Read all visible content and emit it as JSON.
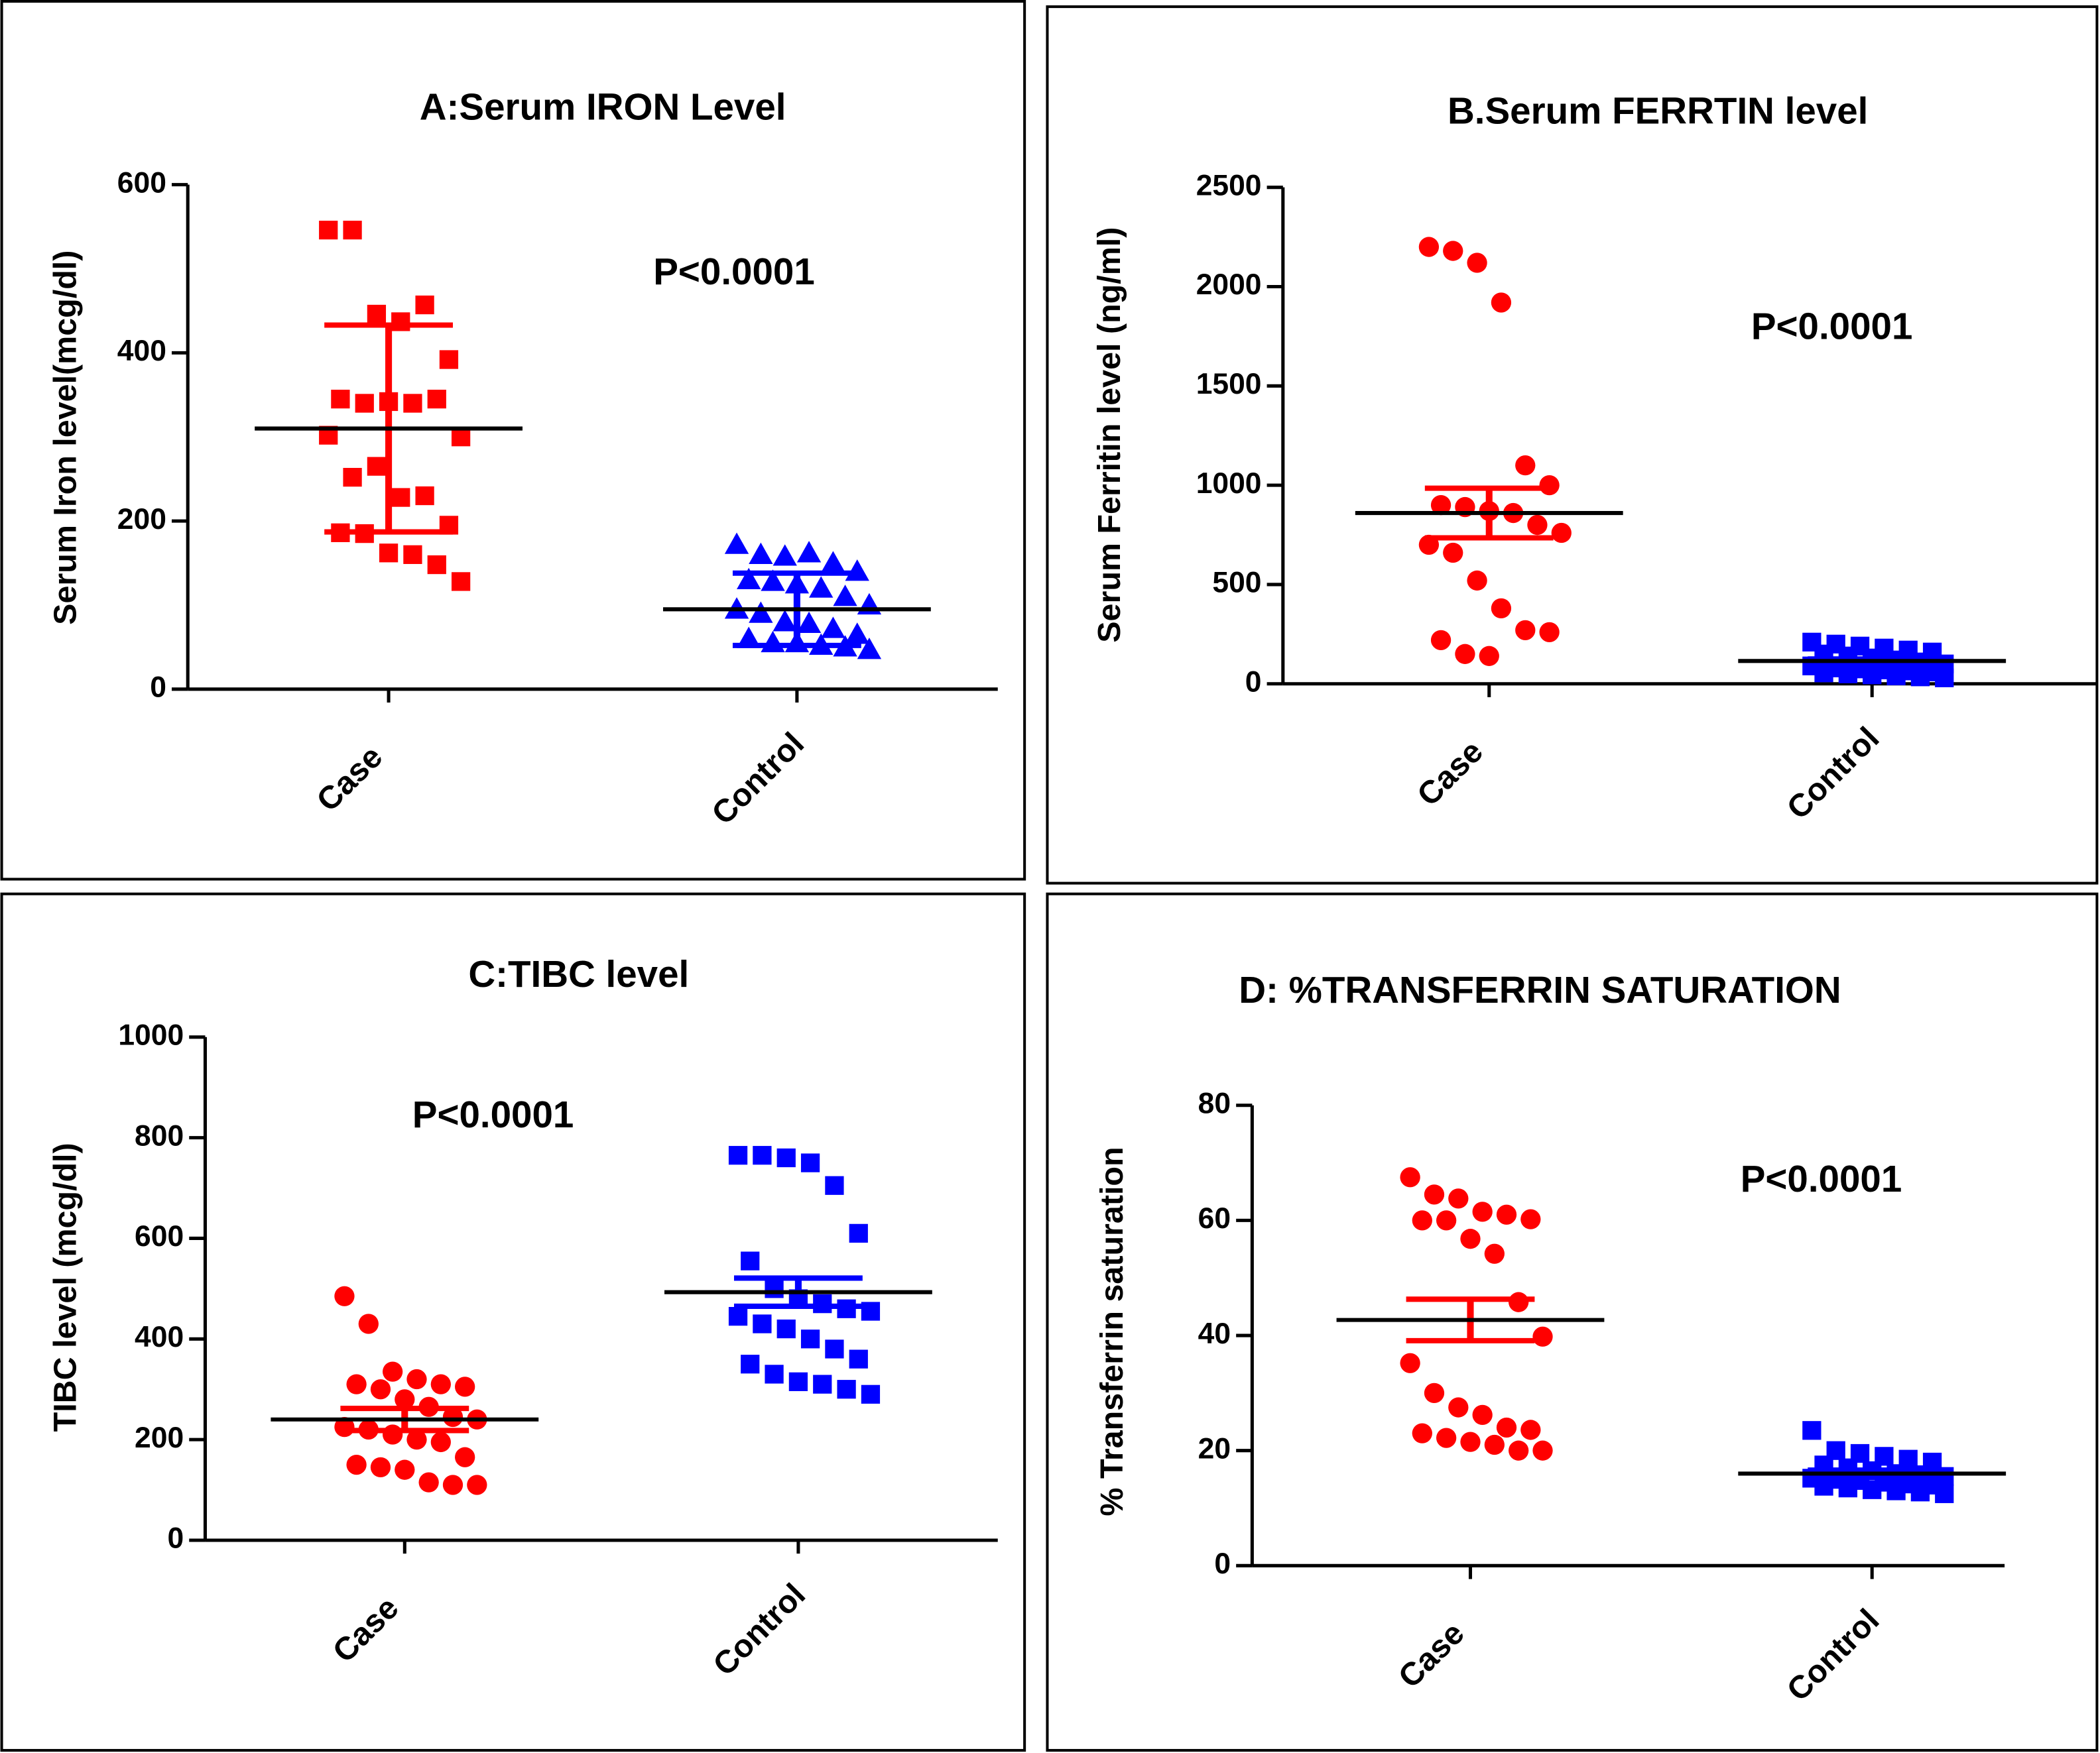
{
  "chart_data": [
    {
      "type": "dotplot",
      "title": "A:Serum IRON Level",
      "ylabel": "Serum Iron level(mcg/dl)",
      "annotation": "P<0.0001",
      "categories": [
        "Case",
        "Control"
      ],
      "ylim": [
        0,
        600
      ],
      "yticks": [
        0,
        200,
        400,
        600
      ],
      "groups": [
        {
          "color": "#ff0000",
          "marker": "square",
          "values": [
            546,
            546,
            446,
            437,
            457,
            392,
            345,
            340,
            342,
            340,
            345,
            300,
            302,
            252,
            265,
            228,
            230,
            195,
            186,
            185,
            162,
            160,
            148,
            128
          ],
          "mean": 310,
          "error": 123
        },
        {
          "color": "#0000ff",
          "marker": "triangle",
          "values": [
            172,
            160,
            158,
            162,
            150,
            140,
            130,
            128,
            125,
            120,
            110,
            100,
            95,
            90,
            80,
            78,
            72,
            65,
            60,
            55,
            55,
            52,
            50,
            47
          ],
          "mean": 95,
          "error": 43
        }
      ]
    },
    {
      "type": "dotplot",
      "title": "B.Serum FERRTIN level",
      "ylabel": "Serum Ferritin level (ng/ml)",
      "annotation": "P<0.0001",
      "categories": [
        "Case",
        "Control"
      ],
      "ylim": [
        0,
        2500
      ],
      "yticks": [
        0,
        500,
        1000,
        1500,
        2000,
        2500
      ],
      "groups": [
        {
          "color": "#ff0000",
          "marker": "circle",
          "values": [
            2200,
            2180,
            2120,
            1920,
            1100,
            1000,
            900,
            890,
            870,
            860,
            800,
            760,
            700,
            660,
            520,
            380,
            270,
            260,
            220,
            150,
            140
          ],
          "mean": 860,
          "error": 125
        },
        {
          "color": "#0000ff",
          "marker": "square",
          "values": [
            210,
            200,
            190,
            180,
            170,
            160,
            150,
            140,
            130,
            120,
            110,
            100,
            90,
            80,
            75,
            70,
            65,
            60,
            55,
            50,
            45,
            40,
            35,
            30
          ],
          "mean": 115,
          "error": 10
        }
      ]
    },
    {
      "type": "dotplot",
      "title": "C:TIBC level",
      "ylabel": "TIBC level (mcg/dl)",
      "annotation": "P<0.0001",
      "categories": [
        "Case",
        "Control"
      ],
      "ylim": [
        0,
        1000
      ],
      "yticks": [
        0,
        200,
        400,
        600,
        800,
        1000
      ],
      "groups": [
        {
          "color": "#ff0000",
          "marker": "circle",
          "values": [
            485,
            430,
            335,
            320,
            310,
            305,
            310,
            300,
            280,
            265,
            245,
            240,
            225,
            220,
            210,
            200,
            195,
            165,
            150,
            145,
            140,
            115,
            110,
            110
          ],
          "mean": 240,
          "error": 22
        },
        {
          "color": "#0000ff",
          "marker": "square",
          "values": [
            765,
            765,
            760,
            750,
            705,
            610,
            555,
            500,
            480,
            470,
            460,
            455,
            445,
            430,
            420,
            400,
            380,
            360,
            350,
            330,
            315,
            310,
            300,
            290
          ],
          "mean": 493,
          "error": 28
        }
      ]
    },
    {
      "type": "dotplot",
      "title": "D: %TRANSFERRIN SATURATION",
      "ylabel": "% Transferrin saturation",
      "annotation": "P<0.0001",
      "categories": [
        "Case",
        "Control"
      ],
      "ylim": [
        0,
        80
      ],
      "yticks": [
        0,
        20,
        40,
        60,
        80
      ],
      "groups": [
        {
          "color": "#ff0000",
          "marker": "circle",
          "values": [
            67.5,
            64.5,
            63.8,
            61.5,
            61,
            60.2,
            60,
            60,
            56.8,
            54.2,
            45.8,
            39.8,
            35.2,
            30,
            27.5,
            26.2,
            24,
            23.6,
            23,
            22.2,
            21.5,
            21,
            20,
            20
          ],
          "mean": 42.7,
          "error": 3.6
        },
        {
          "color": "#0000ff",
          "marker": "square",
          "values": [
            23.5,
            20,
            19.5,
            19,
            18.5,
            18,
            17.5,
            17,
            16.5,
            16,
            15.8,
            15.5,
            15.2,
            15,
            14.8,
            14.5,
            14.2,
            14,
            13.8,
            13.5,
            13.2,
            13,
            12.8,
            12.5
          ],
          "mean": 16,
          "error": 0.6
        }
      ]
    }
  ]
}
